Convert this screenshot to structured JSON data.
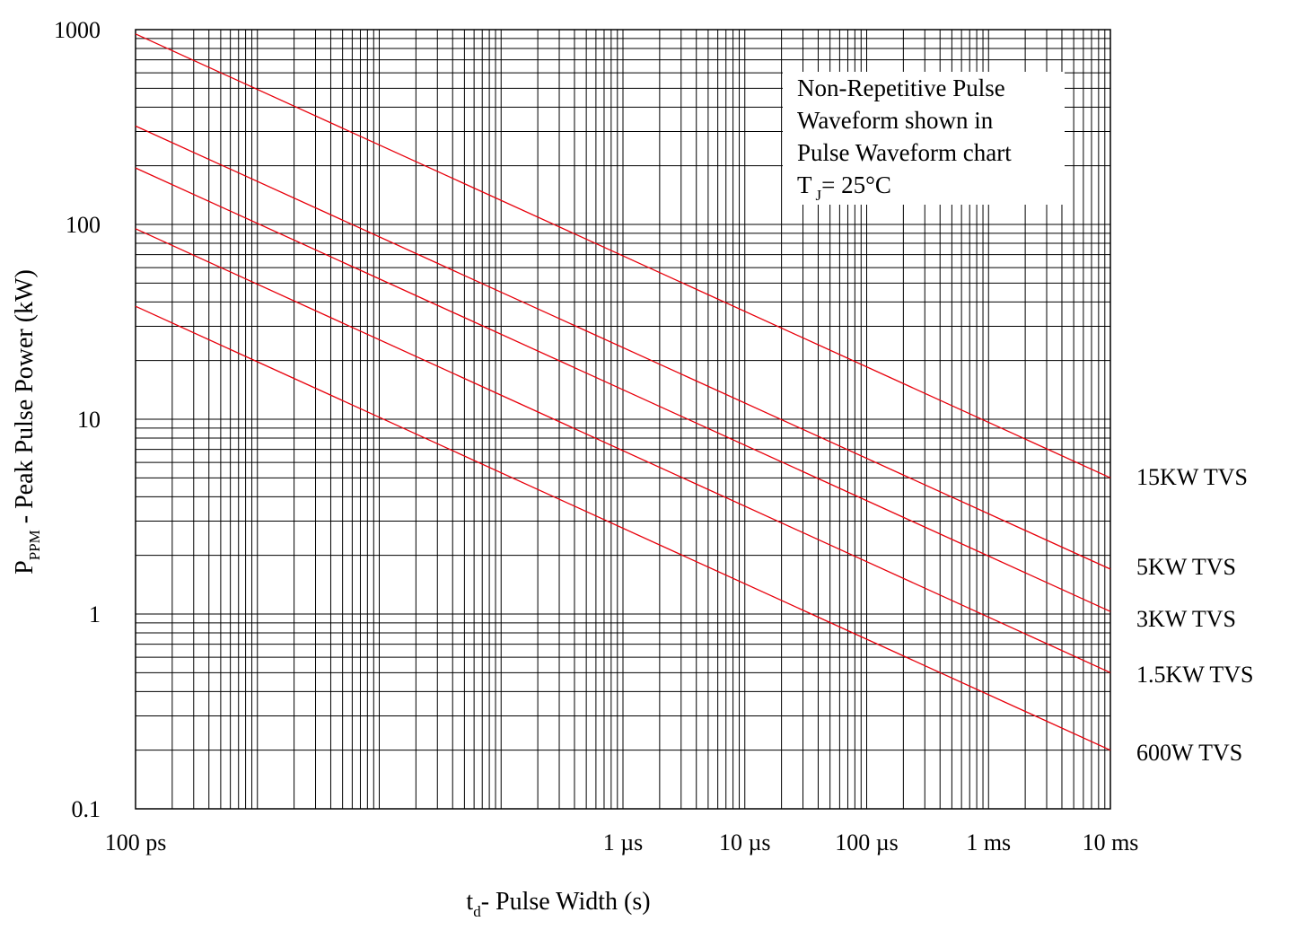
{
  "chart_data": {
    "type": "line",
    "title": "",
    "xlabel": {
      "main": "t",
      "sub": "d",
      "rest": "- Pulse Width (s)"
    },
    "ylabel": {
      "main": "P",
      "sub": "PPM",
      "rest": " - Peak Pulse Power (kW)"
    },
    "xscale": "log",
    "yscale": "log",
    "xlim": [
      1e-10,
      0.01
    ],
    "ylim": [
      0.1,
      1000
    ],
    "grid": true,
    "x_ticks": [
      {
        "value": 1e-10,
        "label": "100 ps"
      },
      {
        "value": 1e-06,
        "label": "1 µs"
      },
      {
        "value": 1e-05,
        "label": "10 µs"
      },
      {
        "value": 0.0001,
        "label": "100 µs"
      },
      {
        "value": 0.001,
        "label": "1 ms"
      },
      {
        "value": 0.01,
        "label": "10 ms"
      }
    ],
    "y_ticks": [
      {
        "value": 1000,
        "label": "1000"
      },
      {
        "value": 100,
        "label": "100"
      },
      {
        "value": 10,
        "label": "10"
      },
      {
        "value": 1,
        "label": "1"
      },
      {
        "value": 0.1,
        "label": "0.1"
      }
    ],
    "annotation": {
      "lines": [
        "Non-Repetitive Pulse",
        "Waveform shown in",
        "Pulse Waveform chart"
      ],
      "tj": {
        "main": "T",
        "sub": "J",
        "rest": "= 25°C"
      }
    },
    "series_color": "#e8000b",
    "series": [
      {
        "name": "15KW TVS",
        "x": [
          1e-10,
          0.01
        ],
        "y": [
          950,
          5.0
        ]
      },
      {
        "name": "5KW TVS",
        "x": [
          1e-10,
          0.01
        ],
        "y": [
          320,
          1.7
        ]
      },
      {
        "name": "3KW TVS",
        "x": [
          1e-10,
          0.01
        ],
        "y": [
          195,
          1.03
        ]
      },
      {
        "name": "1.5KW TVS",
        "x": [
          1e-10,
          0.01
        ],
        "y": [
          95,
          0.5
        ]
      },
      {
        "name": "600W TVS",
        "x": [
          1e-10,
          0.01
        ],
        "y": [
          38,
          0.2
        ]
      }
    ]
  }
}
